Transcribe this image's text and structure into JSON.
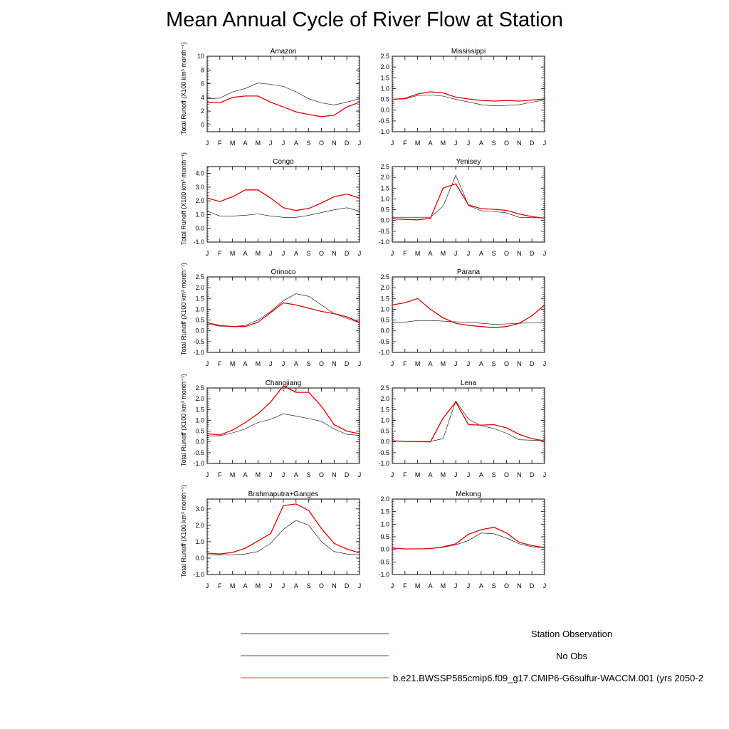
{
  "title": "Mean Annual Cycle of River Flow at Station",
  "ylabel": "Total Runoff (X100 km³ month⁻¹)",
  "months": [
    "J",
    "F",
    "M",
    "A",
    "M",
    "J",
    "J",
    "A",
    "S",
    "O",
    "N",
    "D",
    "J"
  ],
  "colors": {
    "obs": "#000000",
    "noobs": "#0000cc",
    "model": "#e00000"
  },
  "legend": [
    {
      "label": "Station Observation",
      "color": "#000000"
    },
    {
      "label": "No Obs",
      "color": "#0000cc"
    },
    {
      "label": "b.e21.BWSSP585cmip6.f09_g17.CMIP6-G6sulfur-WACCM.001 (yrs 2050-2",
      "color": "#e00000"
    }
  ],
  "chart_data": [
    {
      "type": "line",
      "title": "Amazon",
      "ylim": [
        -1,
        10
      ],
      "yticks": [
        0,
        2,
        4,
        6,
        8,
        10
      ],
      "yticklabels": [
        "0",
        "2",
        "4",
        "6",
        "8",
        "10"
      ],
      "series": [
        {
          "name": "Station Observation",
          "values": [
            3.8,
            3.9,
            4.8,
            5.3,
            6.1,
            5.9,
            5.6,
            4.8,
            3.8,
            3.2,
            2.9,
            3.3,
            3.8
          ]
        },
        {
          "name": "b.e21.BWSSP585cmip6.f09_g17.CMIP6-G6sulfur-WACCM.001 (yrs 2050-2",
          "values": [
            3.3,
            3.2,
            4.0,
            4.2,
            4.2,
            3.3,
            2.6,
            1.9,
            1.5,
            1.2,
            1.4,
            2.6,
            3.3
          ]
        }
      ]
    },
    {
      "type": "line",
      "title": "Mississippi",
      "ylim": [
        -1,
        2.5
      ],
      "yticks": [
        -1,
        -0.5,
        0,
        0.5,
        1,
        1.5,
        2,
        2.5
      ],
      "yticklabels": [
        "-1.0",
        "-0.5",
        "0.0",
        "0.5",
        "1.0",
        "1.5",
        "2.0",
        "2.5"
      ],
      "series": [
        {
          "name": "Station Observation",
          "values": [
            0.5,
            0.52,
            0.68,
            0.7,
            0.65,
            0.5,
            0.38,
            0.25,
            0.2,
            0.22,
            0.25,
            0.37,
            0.47
          ]
        },
        {
          "name": "b.e21.BWSSP585cmip6.f09_g17.CMIP6-G6sulfur-WACCM.001 (yrs 2050-2",
          "values": [
            0.5,
            0.55,
            0.75,
            0.85,
            0.8,
            0.6,
            0.52,
            0.45,
            0.42,
            0.45,
            0.42,
            0.47,
            0.52
          ]
        }
      ]
    },
    {
      "type": "line",
      "title": "Congo",
      "ylim": [
        -1,
        4.5
      ],
      "yticks": [
        -1,
        0,
        1,
        2,
        3,
        4
      ],
      "yticklabels": [
        "-1.0",
        "0.0",
        "1.0",
        "2.0",
        "3.0",
        "4.0"
      ],
      "series": [
        {
          "name": "Station Observation",
          "values": [
            1.25,
            0.9,
            0.9,
            0.95,
            1.05,
            0.9,
            0.8,
            0.8,
            0.95,
            1.15,
            1.35,
            1.5,
            1.25
          ]
        },
        {
          "name": "b.e21.BWSSP585cmip6.f09_g17.CMIP6-G6sulfur-WACCM.001 (yrs 2050-2",
          "values": [
            2.2,
            1.95,
            2.3,
            2.8,
            2.8,
            2.2,
            1.5,
            1.3,
            1.45,
            1.85,
            2.3,
            2.5,
            2.2
          ]
        }
      ]
    },
    {
      "type": "line",
      "title": "Yenisey",
      "ylim": [
        -1,
        2.5
      ],
      "yticks": [
        -1,
        -0.5,
        0,
        0.5,
        1,
        1.5,
        2,
        2.5
      ],
      "yticklabels": [
        "-1.0",
        "-0.5",
        "0.0",
        "0.5",
        "1.0",
        "1.5",
        "2.0",
        "2.5"
      ],
      "series": [
        {
          "name": "Station Observation",
          "values": [
            0.15,
            0.15,
            0.15,
            0.15,
            0.65,
            2.1,
            0.7,
            0.45,
            0.42,
            0.35,
            0.15,
            0.13,
            0.13
          ]
        },
        {
          "name": "b.e21.BWSSP585cmip6.f09_g17.CMIP6-G6sulfur-WACCM.001 (yrs 2050-2",
          "values": [
            0.08,
            0.05,
            0.03,
            0.1,
            1.5,
            1.7,
            0.72,
            0.55,
            0.52,
            0.47,
            0.3,
            0.18,
            0.1
          ]
        }
      ]
    },
    {
      "type": "line",
      "title": "Orinoco",
      "ylim": [
        -1,
        2.5
      ],
      "yticks": [
        -1,
        -0.5,
        0,
        0.5,
        1,
        1.5,
        2,
        2.5
      ],
      "yticklabels": [
        "-1.0",
        "-0.5",
        "0.0",
        "0.5",
        "1.0",
        "1.5",
        "2.0",
        "2.5"
      ],
      "series": [
        {
          "name": "Station Observation",
          "values": [
            0.32,
            0.22,
            0.2,
            0.25,
            0.5,
            0.9,
            1.4,
            1.72,
            1.6,
            1.2,
            0.8,
            0.58,
            0.37
          ]
        },
        {
          "name": "b.e21.BWSSP585cmip6.f09_g17.CMIP6-G6sulfur-WACCM.001 (yrs 2050-2",
          "values": [
            0.38,
            0.25,
            0.2,
            0.2,
            0.4,
            0.85,
            1.3,
            1.2,
            1.05,
            0.9,
            0.8,
            0.65,
            0.4
          ]
        }
      ]
    },
    {
      "type": "line",
      "title": "Parana",
      "ylim": [
        -1,
        2.5
      ],
      "yticks": [
        -1,
        -0.5,
        0,
        0.5,
        1,
        1.5,
        2,
        2.5
      ],
      "yticklabels": [
        "-1.0",
        "-0.5",
        "0.0",
        "0.5",
        "1.0",
        "1.5",
        "2.0",
        "2.5"
      ],
      "series": [
        {
          "name": "Station Observation",
          "values": [
            0.38,
            0.4,
            0.48,
            0.48,
            0.45,
            0.42,
            0.4,
            0.35,
            0.3,
            0.32,
            0.35,
            0.37,
            0.38
          ]
        },
        {
          "name": "b.e21.BWSSP585cmip6.f09_g17.CMIP6-G6sulfur-WACCM.001 (yrs 2050-2",
          "values": [
            1.2,
            1.3,
            1.5,
            1.0,
            0.6,
            0.35,
            0.25,
            0.2,
            0.15,
            0.2,
            0.35,
            0.7,
            1.2
          ]
        }
      ]
    },
    {
      "type": "line",
      "title": "Changjiang",
      "ylim": [
        -1,
        2.5
      ],
      "yticks": [
        -1,
        -0.5,
        0,
        0.5,
        1,
        1.5,
        2,
        2.5
      ],
      "yticklabels": [
        "-1.0",
        "-0.5",
        "0.0",
        "0.5",
        "1.0",
        "1.5",
        "2.0",
        "2.5"
      ],
      "series": [
        {
          "name": "Station Observation",
          "values": [
            0.28,
            0.28,
            0.42,
            0.6,
            0.9,
            1.05,
            1.3,
            1.2,
            1.08,
            0.95,
            0.6,
            0.35,
            0.3
          ]
        },
        {
          "name": "b.e21.BWSSP585cmip6.f09_g17.CMIP6-G6sulfur-WACCM.001 (yrs 2050-2",
          "values": [
            0.38,
            0.32,
            0.55,
            0.9,
            1.3,
            1.85,
            2.6,
            2.3,
            2.3,
            1.65,
            0.8,
            0.5,
            0.38
          ]
        }
      ]
    },
    {
      "type": "line",
      "title": "Lena",
      "ylim": [
        -1,
        2.5
      ],
      "yticks": [
        -1,
        -0.5,
        0,
        0.5,
        1,
        1.5,
        2,
        2.5
      ],
      "yticklabels": [
        "-1.0",
        "-0.5",
        "0.0",
        "0.5",
        "1.0",
        "1.5",
        "2.0",
        "2.5"
      ],
      "series": [
        {
          "name": "Station Observation",
          "values": [
            0.05,
            0.03,
            0.02,
            0.02,
            0.15,
            1.9,
            1.05,
            0.75,
            0.62,
            0.4,
            0.1,
            0.08,
            0.06
          ]
        },
        {
          "name": "b.e21.BWSSP585cmip6.f09_g17.CMIP6-G6sulfur-WACCM.001 (yrs 2050-2",
          "values": [
            0.05,
            0.02,
            0.01,
            0.0,
            1.1,
            1.85,
            0.8,
            0.78,
            0.8,
            0.65,
            0.35,
            0.15,
            0.05
          ]
        }
      ]
    },
    {
      "type": "line",
      "title": "Brahmaputra+Ganges",
      "ylim": [
        -1,
        3.6
      ],
      "yticks": [
        -1,
        0,
        1,
        2,
        3
      ],
      "yticklabels": [
        "-1.0",
        "0.0",
        "1.0",
        "2.0",
        "3.0"
      ],
      "series": [
        {
          "name": "Station Observation",
          "values": [
            0.2,
            0.18,
            0.2,
            0.25,
            0.4,
            0.9,
            1.75,
            2.3,
            2.0,
            1.0,
            0.4,
            0.25,
            0.2
          ]
        },
        {
          "name": "b.e21.BWSSP585cmip6.f09_g17.CMIP6-G6sulfur-WACCM.001 (yrs 2050-2",
          "values": [
            0.3,
            0.25,
            0.35,
            0.6,
            1.05,
            1.5,
            3.2,
            3.3,
            2.9,
            1.8,
            0.9,
            0.55,
            0.32
          ]
        }
      ]
    },
    {
      "type": "line",
      "title": "Mekong",
      "ylim": [
        -1,
        2
      ],
      "yticks": [
        -1,
        -0.5,
        0,
        0.5,
        1,
        1.5,
        2
      ],
      "yticklabels": [
        "-1.0",
        "-0.5",
        "0.0",
        "0.5",
        "1.0",
        "1.5",
        "2.0"
      ],
      "series": [
        {
          "name": "Station Observation",
          "values": [
            0.05,
            0.02,
            0.02,
            0.03,
            0.08,
            0.18,
            0.35,
            0.65,
            0.62,
            0.45,
            0.22,
            0.1,
            0.06
          ]
        },
        {
          "name": "b.e21.BWSSP585cmip6.f09_g17.CMIP6-G6sulfur-WACCM.001 (yrs 2050-2",
          "values": [
            0.05,
            0.02,
            0.02,
            0.03,
            0.1,
            0.22,
            0.6,
            0.78,
            0.88,
            0.65,
            0.28,
            0.15,
            0.07
          ]
        }
      ]
    }
  ]
}
